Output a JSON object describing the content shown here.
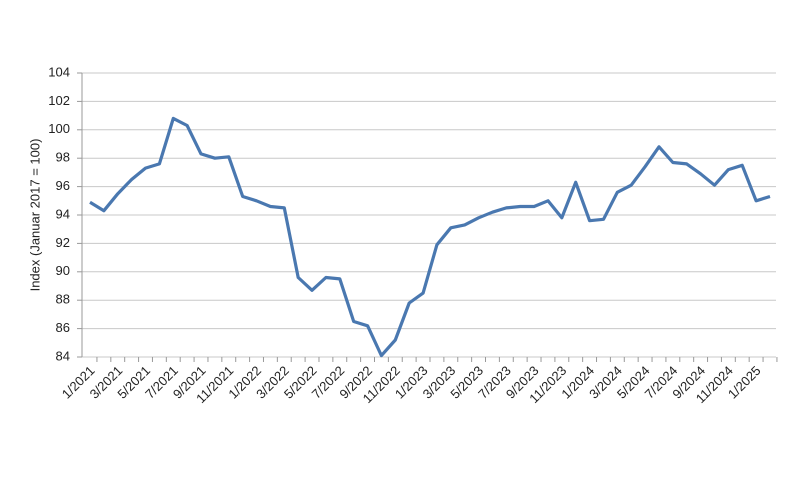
{
  "chart_data": {
    "type": "line",
    "y_label": "Index (Januar 2017 = 100)",
    "categories": [
      "1/2021",
      null,
      "3/2021",
      null,
      "5/2021",
      null,
      "7/2021",
      null,
      "9/2021",
      null,
      "11/2021",
      null,
      "1/2022",
      null,
      "3/2022",
      null,
      "5/2022",
      null,
      "7/2022",
      null,
      "9/2022",
      null,
      "11/2022",
      null,
      "1/2023",
      null,
      "3/2023",
      null,
      "5/2023",
      null,
      "7/2023",
      null,
      "9/2023",
      null,
      "11/2023",
      null,
      "1/2024",
      null,
      "3/2024",
      null,
      "5/2024",
      null,
      "7/2024",
      null,
      "9/2024",
      null,
      "11/2024",
      null,
      "1/2025",
      null
    ],
    "series": [
      {
        "color": "#4a78b0",
        "values": [
          94.9,
          94.3,
          95.5,
          96.5,
          97.3,
          97.6,
          100.8,
          100.3,
          98.3,
          98.0,
          98.1,
          95.3,
          95.0,
          94.6,
          94.5,
          89.6,
          88.7,
          89.6,
          89.5,
          86.5,
          86.2,
          84.1,
          85.2,
          87.8,
          88.5,
          91.9,
          93.1,
          93.3,
          93.8,
          94.2,
          94.5,
          94.6,
          94.6,
          95.0,
          93.8,
          96.3,
          93.6,
          93.7,
          95.6,
          96.1,
          97.4,
          98.8,
          97.7,
          97.6,
          96.9,
          96.1,
          97.2,
          97.5,
          95.0,
          95.3
        ]
      }
    ],
    "ylim": [
      84,
      104
    ],
    "yticks": [
      84,
      86,
      88,
      90,
      92,
      94,
      96,
      98,
      100,
      102,
      104
    ],
    "grid": true
  }
}
